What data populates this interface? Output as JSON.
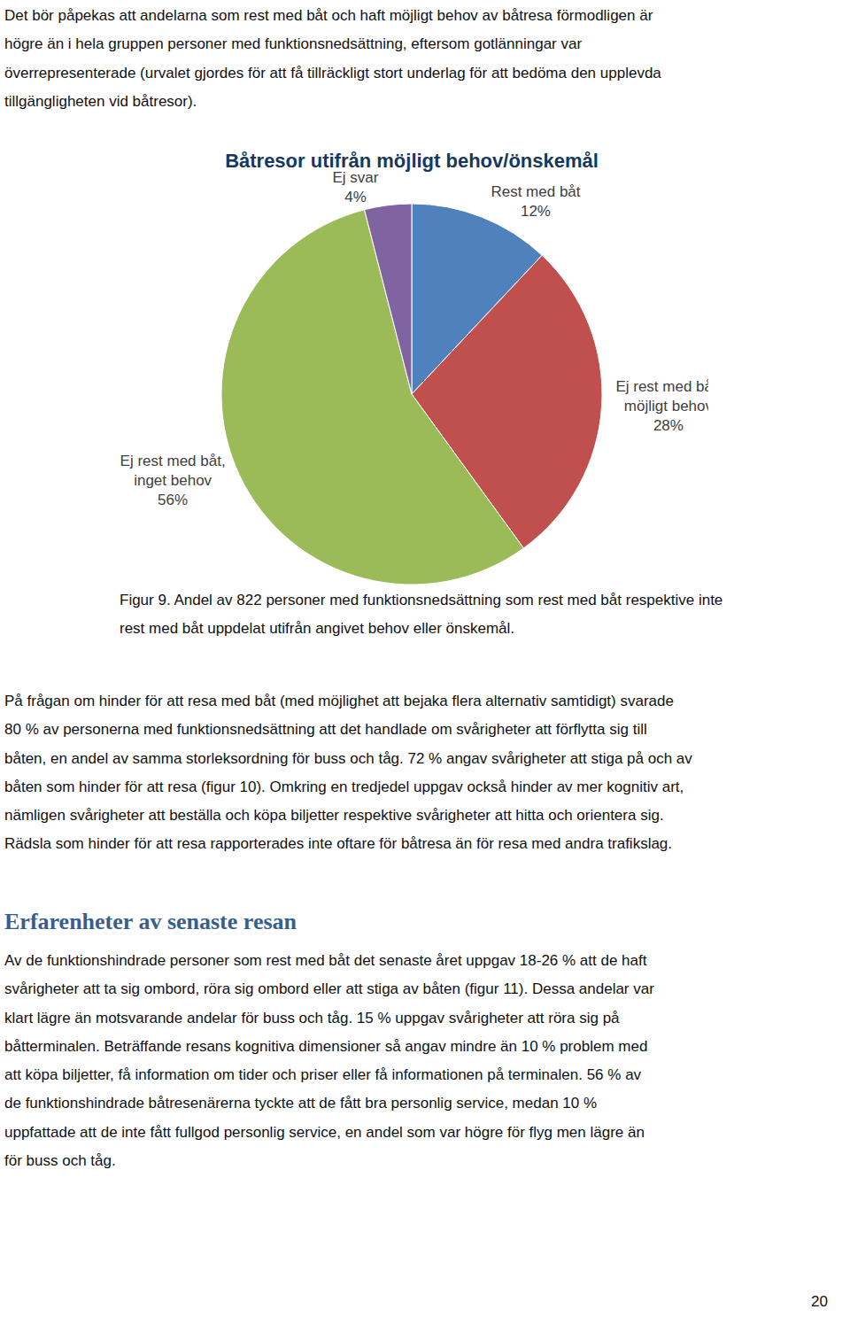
{
  "intro": [
    "Det bör påpekas att andelarna som rest med båt och haft möjligt behov av båtresa förmodligen är",
    "högre än i hela gruppen personer med funktionsnedsättning, eftersom gotlänningar var",
    "överrepresenterade (urvalet gjordes för att få tillräckligt stort underlag för att bedöma den upplevda",
    "tillgängligheten vid båtresor)."
  ],
  "chart_data": {
    "type": "pie",
    "title": "Båtresor utifrån möjligt behov/önskemål",
    "categories": [
      "Rest med båt",
      "Ej rest med båt, möjligt behov",
      "Ej rest med båt, inget behov",
      "Ej svar"
    ],
    "values": [
      12,
      28,
      56,
      4
    ],
    "value_labels": [
      "12%",
      "28%",
      "56%",
      "4%"
    ],
    "colors": [
      "#4f81bd",
      "#c0504d",
      "#9bbb59",
      "#8064a2"
    ],
    "data_labels": true
  },
  "caption": [
    "Figur 9. Andel av 822 personer med funktionsnedsättning som rest med båt respektive inte",
    "rest med båt uppdelat utifrån angivet behov eller önskemål."
  ],
  "paragraph": [
    "På frågan om hinder för att resa med båt (med möjlighet att bejaka flera alternativ samtidigt) svarade",
    "80 % av personerna med funktionsnedsättning att det handlade om svårigheter att förflytta sig till",
    "båten, en andel av samma storleksordning för buss och tåg. 72 % angav svårigheter att stiga på och av",
    "båten som hinder för att resa (figur 10). Omkring en tredjedel uppgav också hinder av mer kognitiv art,",
    "nämligen svårigheter att beställa och köpa biljetter respektive svårigheter att hitta och orientera sig.",
    "Rädsla som hinder för att resa rapporterades inte oftare för båtresa än för resa med andra trafikslag."
  ],
  "heading": "Erfarenheter av senaste resan",
  "section_text": [
    "Av de funktionshindrade personer som rest med båt det senaste året uppgav 18-26 % att de haft",
    "svårigheter att ta sig ombord, röra sig ombord eller att stiga av båten (figur 11). Dessa andelar var",
    "klart lägre än motsvarande andelar för buss och tåg. 15 % uppgav svårigheter att röra sig på",
    "båtterminalen. Beträffande resans kognitiva dimensioner så angav mindre än 10 % problem med",
    "att köpa biljetter, få information om tider och priser eller få informationen på terminalen. 56 % av",
    "de funktionshindrade båtresenärerna tyckte att de fått bra personlig service, medan 10 %",
    "uppfattade att de inte fått fullgod personlig service, en andel som var högre för flyg men lägre än",
    "för buss och tåg."
  ],
  "page_number": "20"
}
